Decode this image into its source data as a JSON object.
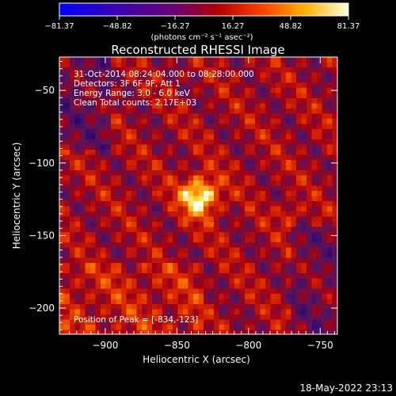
{
  "chart_data": {
    "type": "heatmap",
    "title": "Reconstructed RHESSI Image",
    "xlabel": "Heliocentric X (arcsec)",
    "ylabel": "Heliocentric Y (arcsec)",
    "xlim": [
      -932,
      -738
    ],
    "ylim": [
      -218,
      -27
    ],
    "x_ticks": [
      -900,
      -850,
      -800,
      -750
    ],
    "y_ticks": [
      -50,
      -100,
      -150,
      -200
    ],
    "x_tick_labels": [
      "−900",
      "−850",
      "−800",
      "−750"
    ],
    "y_tick_labels": [
      "−50",
      "−100",
      "−150",
      "−200"
    ],
    "colorbar": {
      "range": [
        -81.37,
        81.37
      ],
      "tick_labels": [
        "−81.37",
        "−48.82",
        "−16.27",
        "16.27",
        "48.82",
        "81.37"
      ],
      "unit": "(photons cm⁻² s⁻¹ asec⁻²)",
      "colors": [
        "#0000ff",
        "#3a00b0",
        "#6a0070",
        "#b00000",
        "#ff4000",
        "#ffb000",
        "#ffffe0"
      ]
    },
    "info_lines": [
      "31-Oct-2014 08:24:04.000 to 08:28:00.000",
      "Detectors: 3F 6F 9F, Att 1",
      "Energy Range: 3.0 - 6.0 keV",
      "Clean     Total counts: 2.17E+03"
    ],
    "peak_label": "Position of Peak = [-834,-123]",
    "peak": [
      -834,
      -123
    ]
  },
  "timestamp": "18-May-2022 23:13"
}
